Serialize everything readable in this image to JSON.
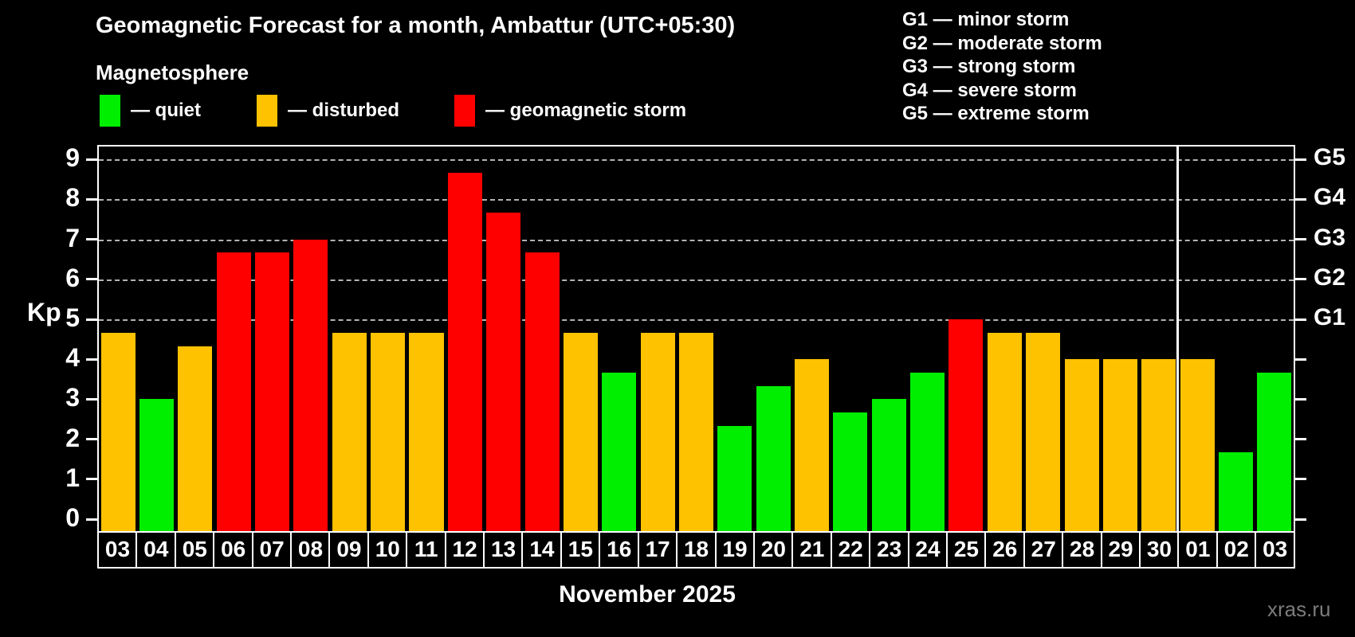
{
  "header": {
    "title": "Geomagnetic Forecast for a month, Ambattur (UTC+05:30)",
    "subtitle": "Magnetosphere"
  },
  "legend": {
    "items": [
      {
        "key": "quiet",
        "label": "— quiet",
        "color": "#00ee00"
      },
      {
        "key": "disturbed",
        "label": "— disturbed",
        "color": "#ffc200"
      },
      {
        "key": "storm",
        "label": "— geomagnetic storm",
        "color": "#ff0000"
      }
    ]
  },
  "storm_scale_legend": {
    "items": [
      {
        "label": "G1 — minor storm"
      },
      {
        "label": "G2 — moderate storm"
      },
      {
        "label": "G3 — strong storm"
      },
      {
        "label": "G4 — severe storm"
      },
      {
        "label": "G5 — extreme storm"
      }
    ]
  },
  "palette": {
    "quiet": "#00ee00",
    "disturbed": "#ffc200",
    "storm": "#ff0000",
    "grid": "#b3b3b3",
    "axis": "#ffffff",
    "background": "#000000"
  },
  "chart_data": {
    "type": "bar",
    "title": "Geomagnetic Forecast for a month, Ambattur (UTC+05:30)",
    "xlabel": "November 2025",
    "ylabel": "Kp",
    "ylim": [
      0,
      9
    ],
    "yticks": [
      0,
      1,
      2,
      3,
      4,
      5,
      6,
      7,
      8,
      9
    ],
    "grid_kp": [
      5,
      6,
      7,
      8,
      9
    ],
    "grid_style": "dashed",
    "categories": [
      "03",
      "04",
      "05",
      "06",
      "07",
      "08",
      "09",
      "10",
      "11",
      "12",
      "13",
      "14",
      "15",
      "16",
      "17",
      "18",
      "19",
      "20",
      "21",
      "22",
      "23",
      "24",
      "25",
      "26",
      "27",
      "28",
      "29",
      "30",
      "01",
      "02",
      "03"
    ],
    "values": [
      4.67,
      3,
      4.33,
      6.67,
      6.67,
      7,
      4.67,
      4.67,
      4.67,
      8.67,
      7.67,
      6.67,
      4.67,
      3.67,
      4.67,
      4.67,
      2.33,
      3.33,
      4,
      2.67,
      3,
      3.67,
      5,
      4.67,
      4.67,
      4,
      4,
      4,
      4,
      1.67,
      3.67
    ],
    "states": [
      "disturbed",
      "quiet",
      "disturbed",
      "storm",
      "storm",
      "storm",
      "disturbed",
      "disturbed",
      "disturbed",
      "storm",
      "storm",
      "storm",
      "disturbed",
      "quiet",
      "disturbed",
      "disturbed",
      "quiet",
      "quiet",
      "disturbed",
      "quiet",
      "quiet",
      "quiet",
      "storm",
      "disturbed",
      "disturbed",
      "disturbed",
      "disturbed",
      "disturbed",
      "disturbed",
      "quiet",
      "quiet"
    ],
    "right_axis": {
      "labels": [
        {
          "kp": 5,
          "label": "G1"
        },
        {
          "kp": 6,
          "label": "G2"
        },
        {
          "kp": 7,
          "label": "G3"
        },
        {
          "kp": 8,
          "label": "G4"
        },
        {
          "kp": 9,
          "label": "G5"
        }
      ]
    },
    "month_boundary_after_category": "30",
    "month_boundary_slots": 28,
    "legend_position": "top"
  },
  "footer": {
    "month_label": "November 2025",
    "watermark": "xras.ru"
  }
}
